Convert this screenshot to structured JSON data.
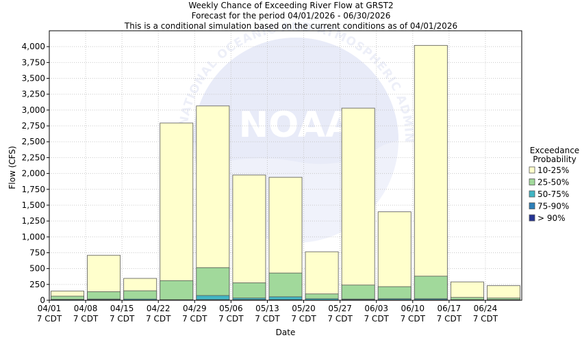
{
  "chart_data": {
    "type": "bar",
    "title_lines": [
      "Weekly Chance of Exceeding River Flow at GRST2",
      "Forecast for the period 04/01/2026 - 06/30/2026",
      "This is a conditional simulation based on the current conditions as of 04/01/2026"
    ],
    "xlabel": "Date",
    "ylabel": "Flow (CFS)",
    "ylim": [
      0,
      4250
    ],
    "yticks": [
      0,
      250,
      500,
      750,
      1000,
      1250,
      1500,
      1750,
      2000,
      2250,
      2500,
      2750,
      3000,
      3250,
      3500,
      3750,
      4000
    ],
    "ytick_labels": [
      "0",
      "250",
      "500",
      "750",
      "1,000",
      "1,250",
      "1,500",
      "1,750",
      "2,000",
      "2,250",
      "2,500",
      "2,750",
      "3,000",
      "3,250",
      "3,500",
      "3,750",
      "4,000"
    ],
    "x_tick_labels": [
      [
        "04/01",
        "7 CDT"
      ],
      [
        "04/08",
        "7 CDT"
      ],
      [
        "04/15",
        "7 CDT"
      ],
      [
        "04/22",
        "7 CDT"
      ],
      [
        "04/29",
        "7 CDT"
      ],
      [
        "05/06",
        "7 CDT"
      ],
      [
        "05/13",
        "7 CDT"
      ],
      [
        "05/20",
        "7 CDT"
      ],
      [
        "05/27",
        "7 CDT"
      ],
      [
        "06/03",
        "7 CDT"
      ],
      [
        "06/10",
        "7 CDT"
      ],
      [
        "06/17",
        "7 CDT"
      ],
      [
        "06/24",
        "7 CDT"
      ]
    ],
    "grid": true,
    "legend_title": [
      "Exceedance",
      "Probability"
    ],
    "legend_position": "right",
    "series": [
      {
        "name": "10-25%",
        "color": "#ffffcc",
        "values": [
          145,
          710,
          345,
          2795,
          3065,
          1975,
          1940,
          765,
          3030,
          1395,
          4020,
          290,
          230
        ]
      },
      {
        "name": "25-50%",
        "color": "#a1d99b",
        "values": [
          65,
          135,
          150,
          310,
          515,
          275,
          430,
          100,
          240,
          215,
          380,
          45,
          35
        ]
      },
      {
        "name": "50-75%",
        "color": "#41b6c4",
        "values": [
          15,
          20,
          20,
          10,
          75,
          35,
          55,
          25,
          20,
          25,
          25,
          10,
          10
        ]
      },
      {
        "name": "75-90%",
        "color": "#2c7fb8",
        "values": [
          5,
          10,
          5,
          5,
          10,
          10,
          10,
          5,
          10,
          10,
          10,
          5,
          5
        ]
      },
      {
        "name": "> 90%",
        "color": "#253494",
        "values": [
          2,
          5,
          2,
          2,
          5,
          5,
          5,
          2,
          5,
          5,
          5,
          2,
          2
        ]
      }
    ],
    "watermark": "NOAA",
    "watermark_ring_text": "NATIONAL OCEANIC AND ATMOSPHERIC ADMINISTRATION"
  }
}
